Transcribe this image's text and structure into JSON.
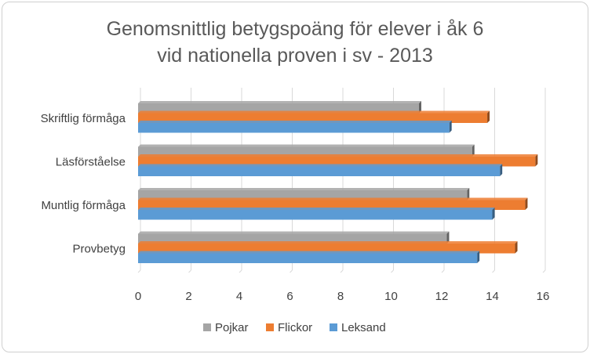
{
  "chart_data": {
    "type": "bar",
    "orientation": "horizontal",
    "title_lines": [
      "Genomsnittlig betygspoäng för elever i åk 6",
      "vid nationella proven i sv - 2013"
    ],
    "categories": [
      "Skriftlig förmåga",
      "Läsförståelse",
      "Muntlig förmåga",
      "Provbetyg"
    ],
    "series": [
      {
        "name": "Pojkar",
        "color": "#a5a5a5",
        "values": [
          11.1,
          13.2,
          13.0,
          12.2
        ]
      },
      {
        "name": "Flickor",
        "color": "#ed7d31",
        "values": [
          13.8,
          15.7,
          15.3,
          14.9
        ]
      },
      {
        "name": "Leksand",
        "color": "#5b9bd5",
        "values": [
          12.3,
          14.3,
          14.0,
          13.4
        ]
      }
    ],
    "xlim": [
      0,
      16
    ],
    "xticks": [
      "0",
      "2",
      "4",
      "6",
      "8",
      "10",
      "12",
      "14",
      "16"
    ],
    "grid": true,
    "legend_position": "bottom"
  }
}
